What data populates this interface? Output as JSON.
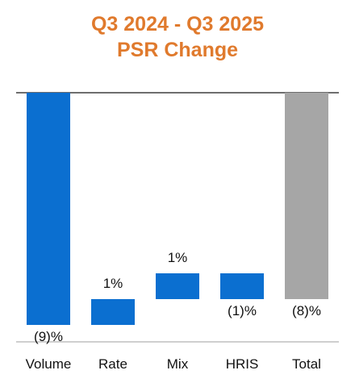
{
  "title": {
    "line1": "Q3 2024 - Q3 2025",
    "line2": "PSR Change"
  },
  "colors": {
    "title": "#E07A2D",
    "bar_blue": "#0B6FD0",
    "bar_gray": "#A6A6A6",
    "axis": "#6E6E6E"
  },
  "chart_data": {
    "type": "bar",
    "subtype": "waterfall",
    "title": "Q3 2024 - Q3 2025 PSR Change",
    "categories": [
      "Volume",
      "Rate",
      "Mix",
      "HRIS",
      "Total"
    ],
    "values": [
      -9,
      1,
      1,
      -1,
      -8
    ],
    "unit": "%",
    "value_labels": [
      "(9)%",
      "1%",
      "1%",
      "(1)%",
      "(8)%"
    ],
    "bar_colors": [
      "#0B6FD0",
      "#0B6FD0",
      "#0B6FD0",
      "#0B6FD0",
      "#A6A6A6"
    ],
    "ylim": [
      -9.35,
      0
    ],
    "grid": false,
    "legend": "none"
  }
}
